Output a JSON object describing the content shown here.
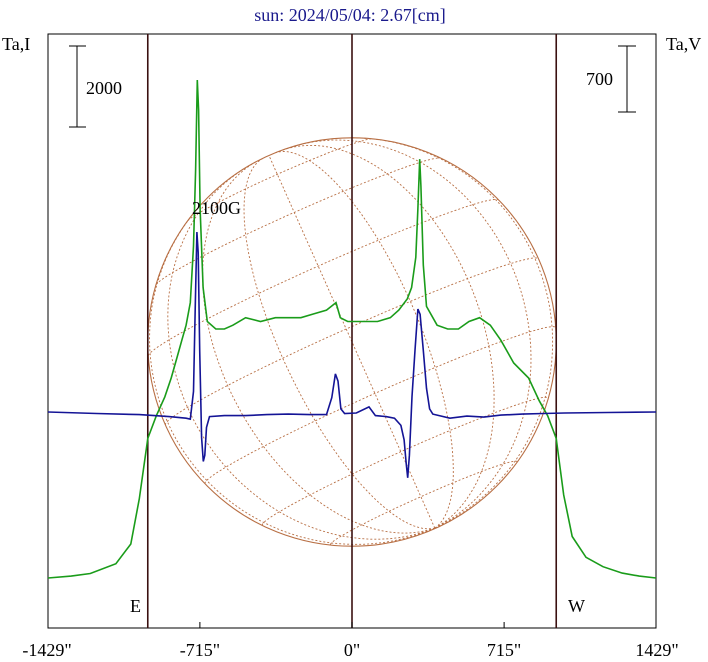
{
  "chart_data": {
    "type": "line",
    "title": "sun: 2024/05/04: 2.67[cm]",
    "left_axis_label": "Ta,I",
    "right_axis_label": "Ta,V",
    "left_scale_bar": "2000",
    "right_scale_bar": "700",
    "x_ticks": [
      {
        "value": -1429,
        "label": "-1429\""
      },
      {
        "value": -715,
        "label": "-715\""
      },
      {
        "value": 0,
        "label": "0\""
      },
      {
        "value": 715,
        "label": "715\""
      },
      {
        "value": 1429,
        "label": "1429\""
      }
    ],
    "xlim": [
      -1429,
      1429
    ],
    "vertical_markers": [
      -960,
      0,
      960
    ],
    "limb_labels": {
      "east": "E",
      "west": "W"
    },
    "annotation": {
      "text": "2100G",
      "x": -722
    },
    "disk": {
      "radius": 960,
      "grid": "heliographic",
      "color": "#b86f44"
    },
    "i_series": {
      "name": "Ta,I",
      "color": "#1a9c1a",
      "ylim": [
        0,
        14000
      ],
      "points": [
        [
          -1429,
          0
        ],
        [
          -1320,
          50
        ],
        [
          -1230,
          120
        ],
        [
          -1110,
          380
        ],
        [
          -1040,
          900
        ],
        [
          -1000,
          2100
        ],
        [
          -960,
          3700
        ],
        [
          -920,
          4300
        ],
        [
          -880,
          4800
        ],
        [
          -850,
          5300
        ],
        [
          -820,
          5900
        ],
        [
          -800,
          6300
        ],
        [
          -780,
          6700
        ],
        [
          -760,
          7300
        ],
        [
          -745,
          8800
        ],
        [
          -735,
          10800
        ],
        [
          -727,
          13200
        ],
        [
          -721,
          12400
        ],
        [
          -714,
          9800
        ],
        [
          -700,
          7700
        ],
        [
          -680,
          6800
        ],
        [
          -640,
          6600
        ],
        [
          -600,
          6600
        ],
        [
          -560,
          6700
        ],
        [
          -500,
          6900
        ],
        [
          -430,
          6800
        ],
        [
          -360,
          6900
        ],
        [
          -300,
          6900
        ],
        [
          -240,
          6900
        ],
        [
          -180,
          7000
        ],
        [
          -120,
          7100
        ],
        [
          -75,
          7300
        ],
        [
          -55,
          6900
        ],
        [
          -20,
          6800
        ],
        [
          40,
          6800
        ],
        [
          120,
          6800
        ],
        [
          180,
          6900
        ],
        [
          220,
          7100
        ],
        [
          260,
          7400
        ],
        [
          280,
          7700
        ],
        [
          300,
          8500
        ],
        [
          310,
          9800
        ],
        [
          318,
          11100
        ],
        [
          324,
          10400
        ],
        [
          335,
          8300
        ],
        [
          350,
          7200
        ],
        [
          400,
          6700
        ],
        [
          450,
          6600
        ],
        [
          500,
          6600
        ],
        [
          550,
          6800
        ],
        [
          600,
          6900
        ],
        [
          650,
          6700
        ],
        [
          700,
          6300
        ],
        [
          760,
          5700
        ],
        [
          830,
          5300
        ],
        [
          880,
          4700
        ],
        [
          920,
          4300
        ],
        [
          960,
          3700
        ],
        [
          995,
          2200
        ],
        [
          1035,
          1100
        ],
        [
          1100,
          550
        ],
        [
          1180,
          300
        ],
        [
          1270,
          130
        ],
        [
          1350,
          50
        ],
        [
          1429,
          0
        ]
      ]
    },
    "v_series": {
      "name": "Ta,V",
      "color": "#141496",
      "ylim": [
        -4000,
        3000
      ],
      "points": [
        [
          -1429,
          0
        ],
        [
          -1200,
          -15
        ],
        [
          -1000,
          -25
        ],
        [
          -860,
          -45
        ],
        [
          -780,
          -60
        ],
        [
          -760,
          -70
        ],
        [
          -745,
          200
        ],
        [
          -737,
          1000
        ],
        [
          -729,
          1750
        ],
        [
          -723,
          1550
        ],
        [
          -716,
          600
        ],
        [
          -707,
          -250
        ],
        [
          -699,
          -480
        ],
        [
          -692,
          -420
        ],
        [
          -684,
          -150
        ],
        [
          -670,
          -45
        ],
        [
          -600,
          -35
        ],
        [
          -500,
          -35
        ],
        [
          -400,
          -25
        ],
        [
          -300,
          -20
        ],
        [
          -200,
          -25
        ],
        [
          -120,
          -25
        ],
        [
          -95,
          140
        ],
        [
          -78,
          370
        ],
        [
          -66,
          300
        ],
        [
          -52,
          30
        ],
        [
          -35,
          -15
        ],
        [
          20,
          -10
        ],
        [
          80,
          50
        ],
        [
          110,
          -35
        ],
        [
          160,
          -45
        ],
        [
          200,
          -60
        ],
        [
          230,
          -130
        ],
        [
          245,
          -270
        ],
        [
          255,
          -500
        ],
        [
          262,
          -640
        ],
        [
          270,
          -420
        ],
        [
          282,
          150
        ],
        [
          296,
          600
        ],
        [
          310,
          1000
        ],
        [
          320,
          950
        ],
        [
          335,
          600
        ],
        [
          350,
          230
        ],
        [
          365,
          30
        ],
        [
          380,
          -20
        ],
        [
          460,
          -60
        ],
        [
          540,
          -40
        ],
        [
          620,
          -50
        ],
        [
          700,
          -30
        ],
        [
          800,
          -20
        ],
        [
          900,
          -15
        ],
        [
          1000,
          -10
        ],
        [
          1200,
          -5
        ],
        [
          1429,
          0
        ]
      ]
    }
  }
}
